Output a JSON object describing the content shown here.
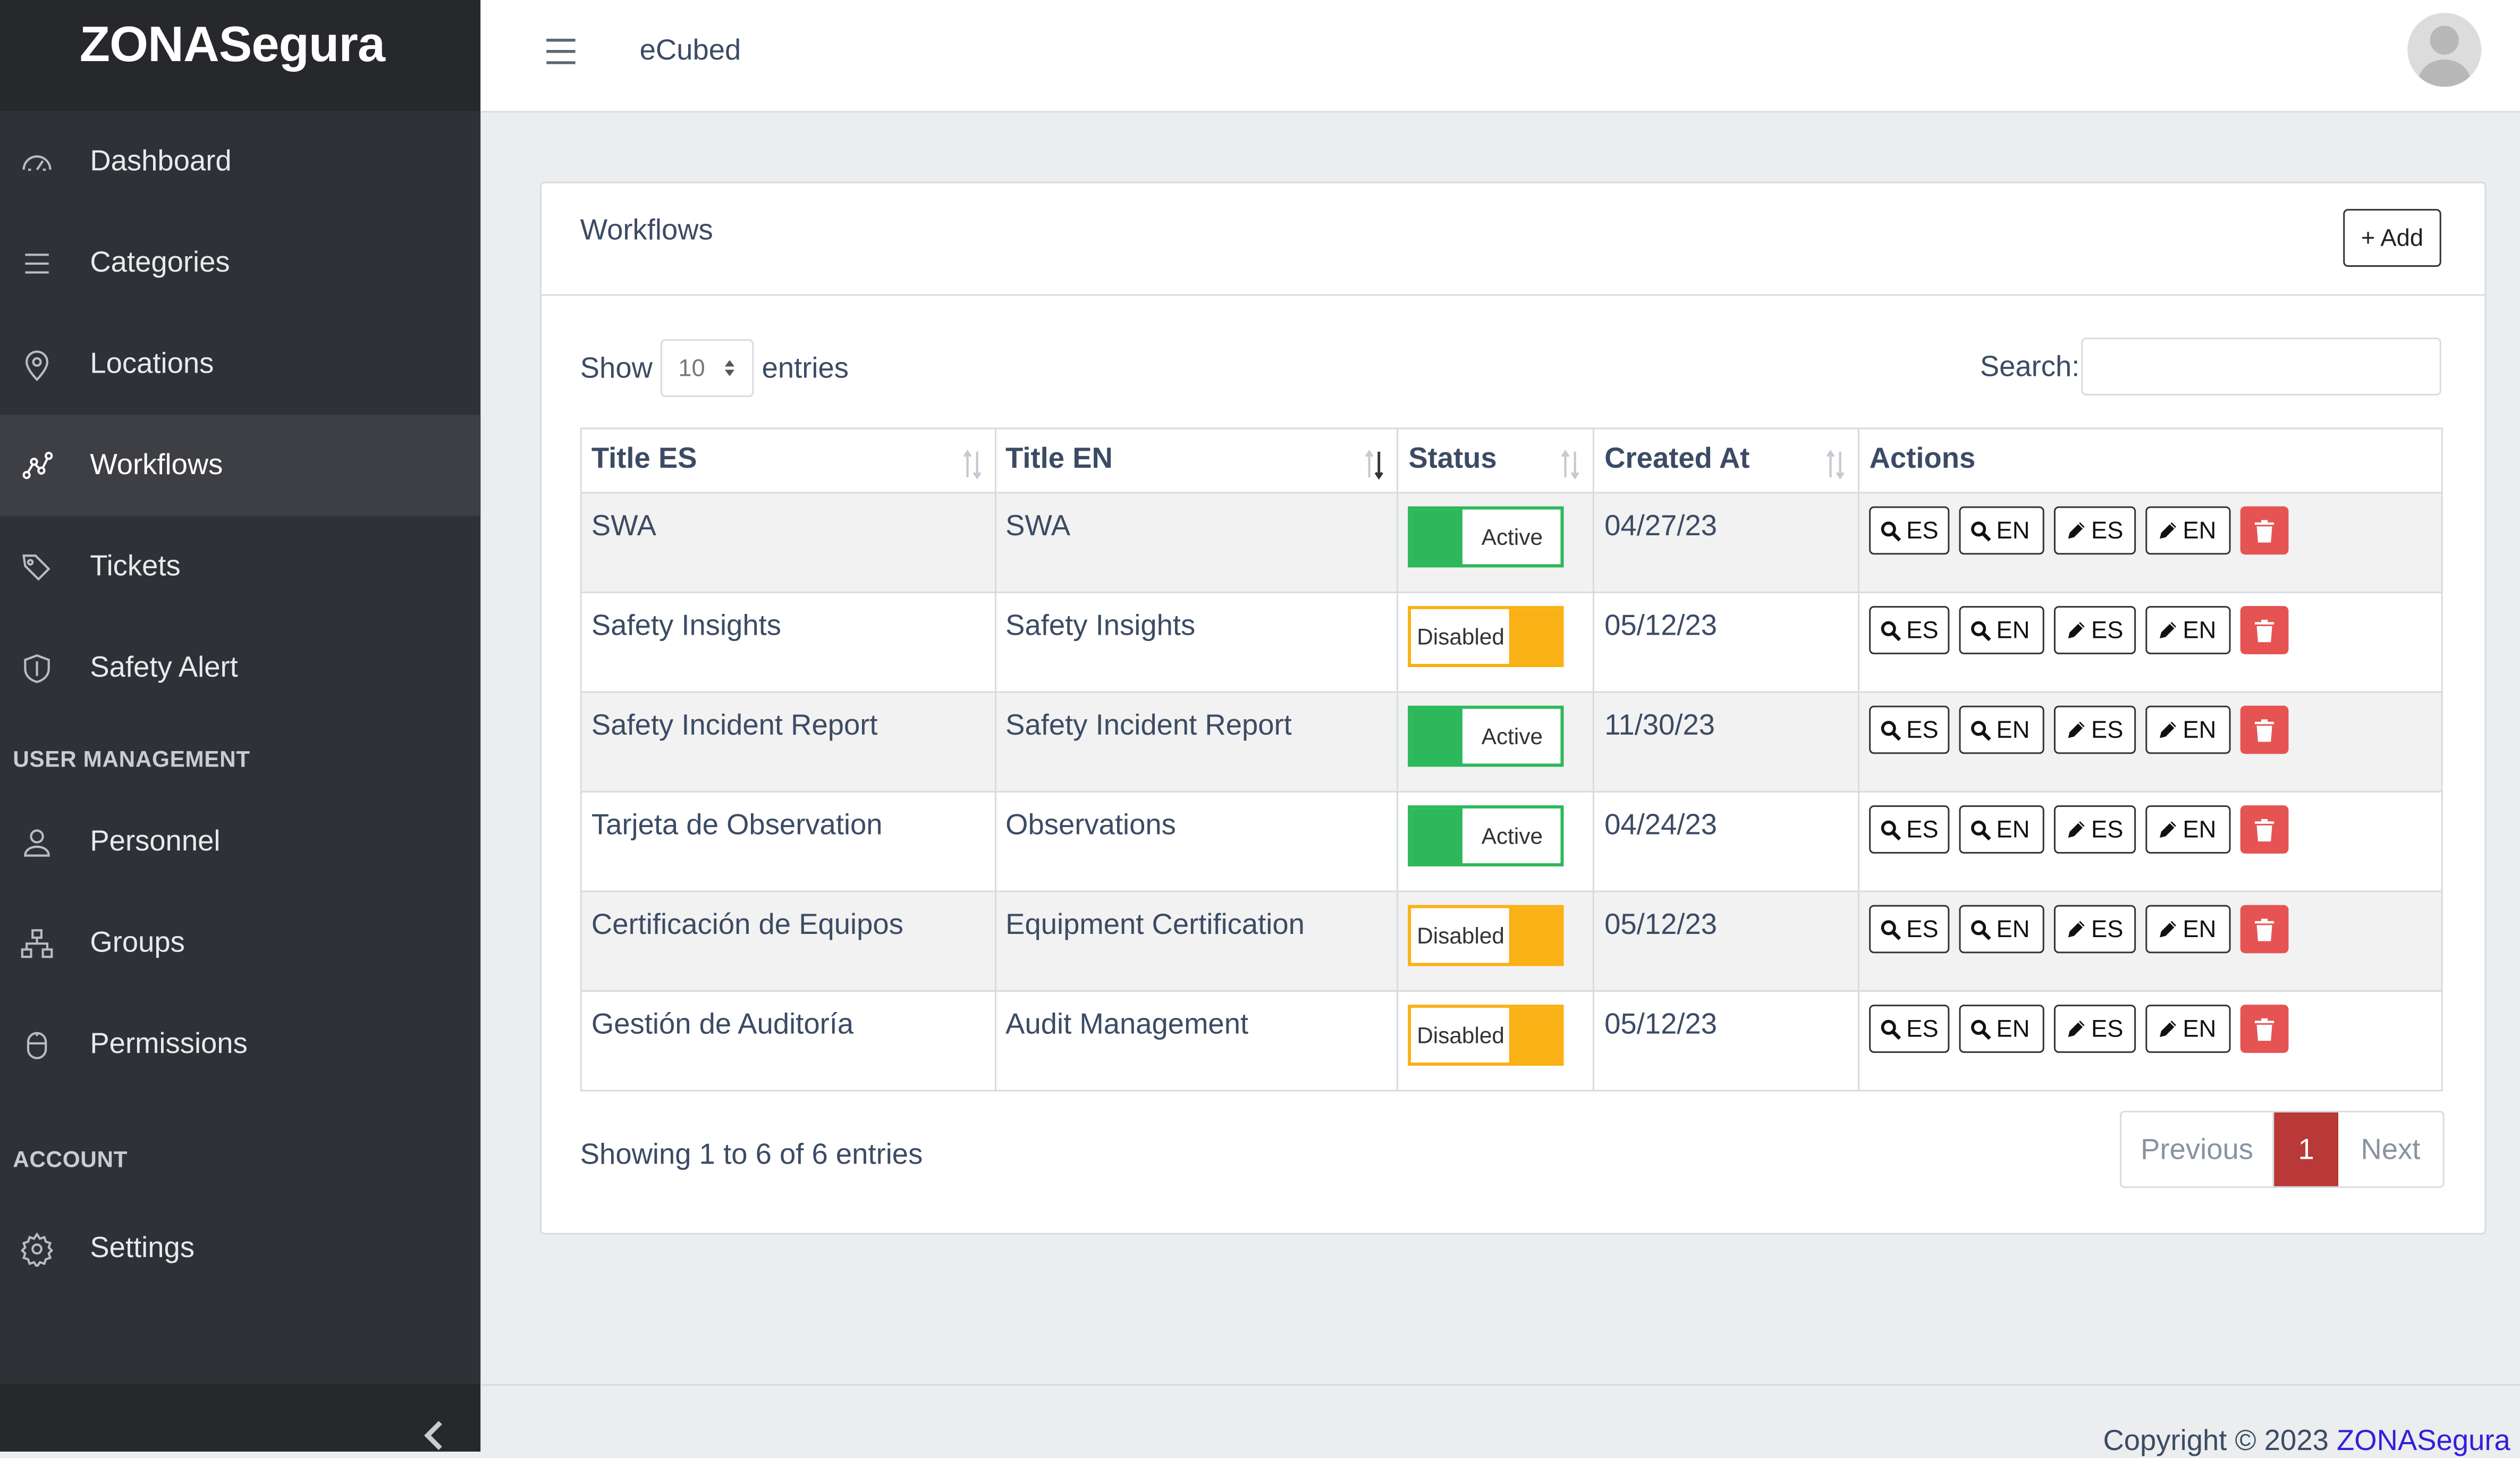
{
  "sidebar": {
    "brand": "ZONASegura",
    "items": [
      {
        "label": "Dashboard",
        "icon": "speedometer-icon"
      },
      {
        "label": "Categories",
        "icon": "list-icon"
      },
      {
        "label": "Locations",
        "icon": "location-pin-icon"
      },
      {
        "label": "Workflows",
        "icon": "graph-icon",
        "active": true
      },
      {
        "label": "Tickets",
        "icon": "tags-icon"
      },
      {
        "label": "Safety Alert",
        "icon": "shield-icon"
      }
    ],
    "section_user_management": "USER MANAGEMENT",
    "user_items": [
      {
        "label": "Personnel",
        "icon": "user-icon"
      },
      {
        "label": "Groups",
        "icon": "sitemap-icon"
      },
      {
        "label": "Permissions",
        "icon": "mouse-icon"
      }
    ],
    "section_account": "ACCOUNT",
    "account_items": [
      {
        "label": "Settings",
        "icon": "gear-icon"
      }
    ]
  },
  "header": {
    "brand": "eCubed"
  },
  "card": {
    "title": "Workflows",
    "add_label": "+ Add"
  },
  "table_controls": {
    "show_label": "Show",
    "length_value": "10",
    "entries_label": "entries",
    "search_label": "Search:",
    "search_value": ""
  },
  "table": {
    "columns": [
      "Title ES",
      "Title EN",
      "Status",
      "Created At",
      "Actions"
    ],
    "rows": [
      {
        "title_es": "SWA",
        "title_en": "SWA",
        "status": "Active",
        "created_at": "04/27/23"
      },
      {
        "title_es": "Safety Insights",
        "title_en": "Safety Insights",
        "status": "Disabled",
        "created_at": "05/12/23"
      },
      {
        "title_es": "Safety Incident Report",
        "title_en": "Safety Incident Report",
        "status": "Active",
        "created_at": "11/30/23"
      },
      {
        "title_es": "Tarjeta de Observation",
        "title_en": "Observations",
        "status": "Active",
        "created_at": "04/24/23"
      },
      {
        "title_es": "Certificación de Equipos",
        "title_en": "Equipment Certification",
        "status": "Disabled",
        "created_at": "05/12/23"
      },
      {
        "title_es": "Gestión de Auditoría",
        "title_en": "Audit Management",
        "status": "Disabled",
        "created_at": "05/12/23"
      }
    ],
    "action_labels": {
      "view_es": "ES",
      "view_en": "EN",
      "edit_es": "ES",
      "edit_en": "EN"
    }
  },
  "pagination": {
    "info": "Showing 1 to 6 of 6 entries",
    "previous": "Previous",
    "current": "1",
    "next": "Next"
  },
  "footer": {
    "prefix": "Copyright © 2023 ",
    "link": "ZONASegura"
  },
  "colors": {
    "sidebar_bg": "#303136",
    "active_green": "#2eb85c",
    "disabled_yellow": "#f9b115",
    "delete_red": "#e55353",
    "page_current": "#b93838",
    "footer_link": "#321fdb"
  }
}
